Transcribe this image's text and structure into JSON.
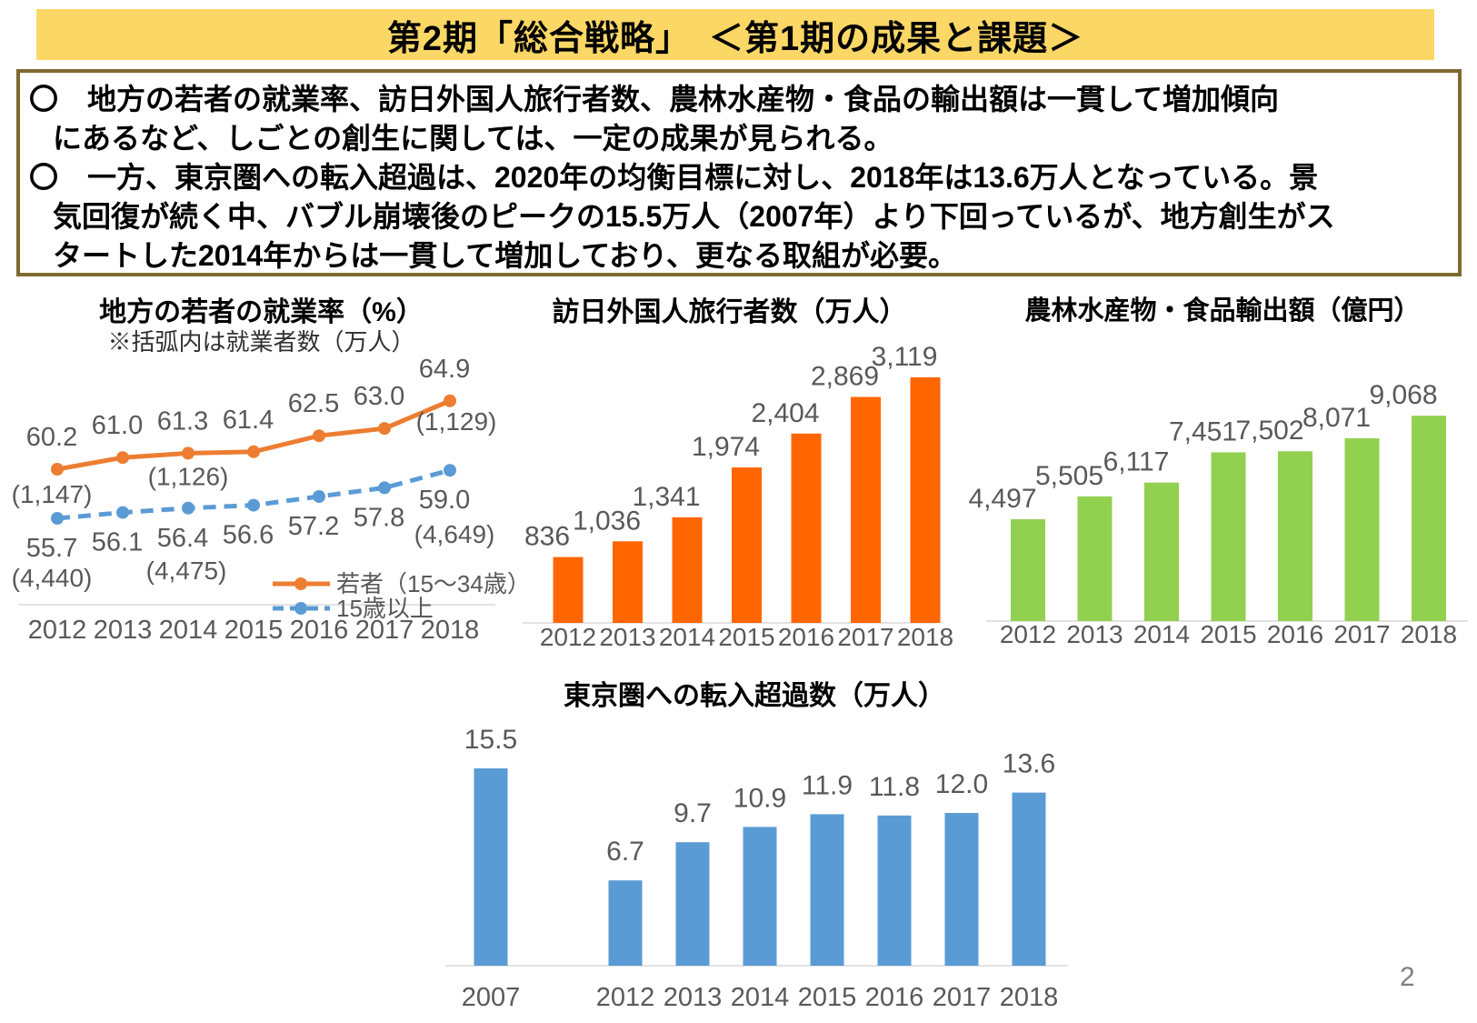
{
  "page": {
    "number": "2"
  },
  "header": {
    "title": "第2期「総合戦略」　＜第1期の成果と課題＞",
    "bg_color": "#FBD765",
    "text_color": "#000000"
  },
  "notice": {
    "border_color": "#7E6A2F",
    "lines": [
      {
        "text": "〇　地方の若者の就業率、訪日外国人旅行者数、農林水産物・食品の輸出額は一貫して増加傾向",
        "indent": false
      },
      {
        "text": "にあるなど、しごとの創生に関しては、一定の成果が見られる。",
        "indent": true
      },
      {
        "text": "〇　一方、東京圏への転入超過は、2020年の均衡目標に対し、2018年は13.6万人となっている。景",
        "indent": false
      },
      {
        "text": "気回復が続く中、バブル崩壊後のピークの15.5万人（2007年）より下回っているが、地方創生がス",
        "indent": true
      },
      {
        "text": "タートした2014年からは一貫して増加しており、更なる取組が必要。",
        "indent": true
      }
    ]
  },
  "chart_data": [
    {
      "type": "line",
      "title": "地方の若者の就業率（%）",
      "subtitle": "※括弧内は就業者数（万人）",
      "categories": [
        "2012",
        "2013",
        "2014",
        "2015",
        "2016",
        "2017",
        "2018"
      ],
      "ylim": [
        55,
        66
      ],
      "grid": false,
      "legend_position": "bottom-right",
      "label_color": "#595959",
      "axis_color": "#D9D9D9",
      "series": [
        {
          "name": "若者（15～34歳）",
          "color": "#ED7D31",
          "line_style": "solid",
          "values": [
            60.2,
            61.0,
            61.3,
            61.4,
            62.5,
            63.0,
            64.9
          ],
          "labels": [
            "60.2",
            "61.0",
            "61.3",
            "61.4",
            "62.5",
            "63.0",
            "64.9"
          ],
          "annotations": [
            {
              "index": 0,
              "text": "(1,147)"
            },
            {
              "index": 2,
              "text": "(1,126)"
            },
            {
              "index": 6,
              "text": "(1,129)"
            }
          ]
        },
        {
          "name": "15歳以上",
          "color": "#5B9BD5",
          "line_style": "dashed",
          "values": [
            55.7,
            56.1,
            56.4,
            56.6,
            57.2,
            57.8,
            59.0
          ],
          "labels": [
            "55.7",
            "56.1",
            "56.4",
            "56.6",
            "57.2",
            "57.8",
            "59.0"
          ],
          "annotations": [
            {
              "index": 0,
              "text": "(4,440)"
            },
            {
              "index": 2,
              "text": "(4,475)"
            },
            {
              "index": 6,
              "text": "(4,649)"
            }
          ]
        }
      ]
    },
    {
      "type": "bar",
      "title": "訪日外国人旅行者数（万人）",
      "categories": [
        "2012",
        "2013",
        "2014",
        "2015",
        "2016",
        "2017",
        "2018"
      ],
      "values": [
        836,
        1036,
        1341,
        1974,
        2404,
        2869,
        3119
      ],
      "labels": [
        "836",
        "1,036",
        "1,341",
        "1,974",
        "2,404",
        "2,869",
        "3,119"
      ],
      "ylim": [
        0,
        3200
      ],
      "grid": false,
      "bar_color": "#FF6600",
      "label_color": "#595959",
      "axis_color": "#D9D9D9"
    },
    {
      "type": "bar",
      "title": "農林水産物・食品輸出額（億円）",
      "categories": [
        "2012",
        "2013",
        "2014",
        "2015",
        "2016",
        "2017",
        "2018"
      ],
      "values": [
        4497,
        5505,
        6117,
        7451,
        7502,
        8071,
        9068
      ],
      "labels": [
        "4,497",
        "5,505",
        "6,117",
        "7,451",
        "7,502",
        "8,071",
        "9,068"
      ],
      "ylim": [
        0,
        9500
      ],
      "grid": false,
      "bar_color": "#92D050",
      "label_color": "#595959",
      "axis_color": "#D9D9D9"
    },
    {
      "type": "bar",
      "title": "東京圏への転入超過数（万人）",
      "categories": [
        "2007",
        "2012",
        "2013",
        "2014",
        "2015",
        "2016",
        "2017",
        "2018"
      ],
      "values": [
        15.5,
        6.7,
        9.7,
        10.9,
        11.9,
        11.8,
        12.0,
        13.6
      ],
      "labels": [
        "15.5",
        "6.7",
        "9.7",
        "10.9",
        "11.9",
        "11.8",
        "12.0",
        "13.6"
      ],
      "ylim": [
        0,
        16
      ],
      "grid": false,
      "bar_color": "#5B9BD5",
      "label_color": "#595959",
      "axis_color": "#D9D9D9"
    }
  ]
}
